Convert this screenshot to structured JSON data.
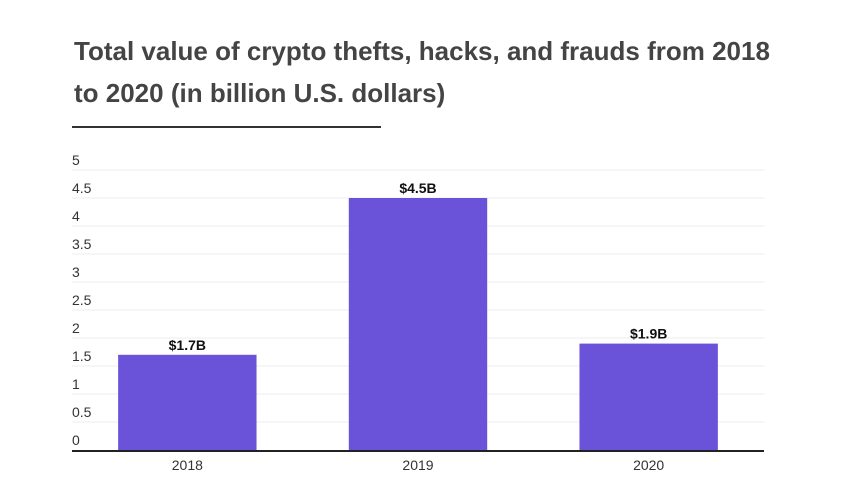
{
  "title": "Total value of crypto thefts, hacks, and frauds from 2018 to 2020 (in billion U.S. dollars)",
  "chart_data": {
    "type": "bar",
    "title": "Total value of crypto thefts, hacks, and frauds from 2018 to 2020 (in billion U.S. dollars)",
    "categories": [
      "2018",
      "2019",
      "2020"
    ],
    "values": [
      1.7,
      4.5,
      1.9
    ],
    "data_labels": [
      "$1.7B",
      "$4.5B",
      "$1.9B"
    ],
    "y_ticks": [
      "0",
      "0.5",
      "1",
      "1.5",
      "2",
      "2.5",
      "3",
      "3.5",
      "4",
      "4.5",
      "5"
    ],
    "xlabel": "",
    "ylabel": "",
    "ylim": [
      0,
      5
    ],
    "grid": true,
    "bar_color": "#6b53d9",
    "grid_color": "#eeeeee",
    "axis_color": "#222222"
  }
}
